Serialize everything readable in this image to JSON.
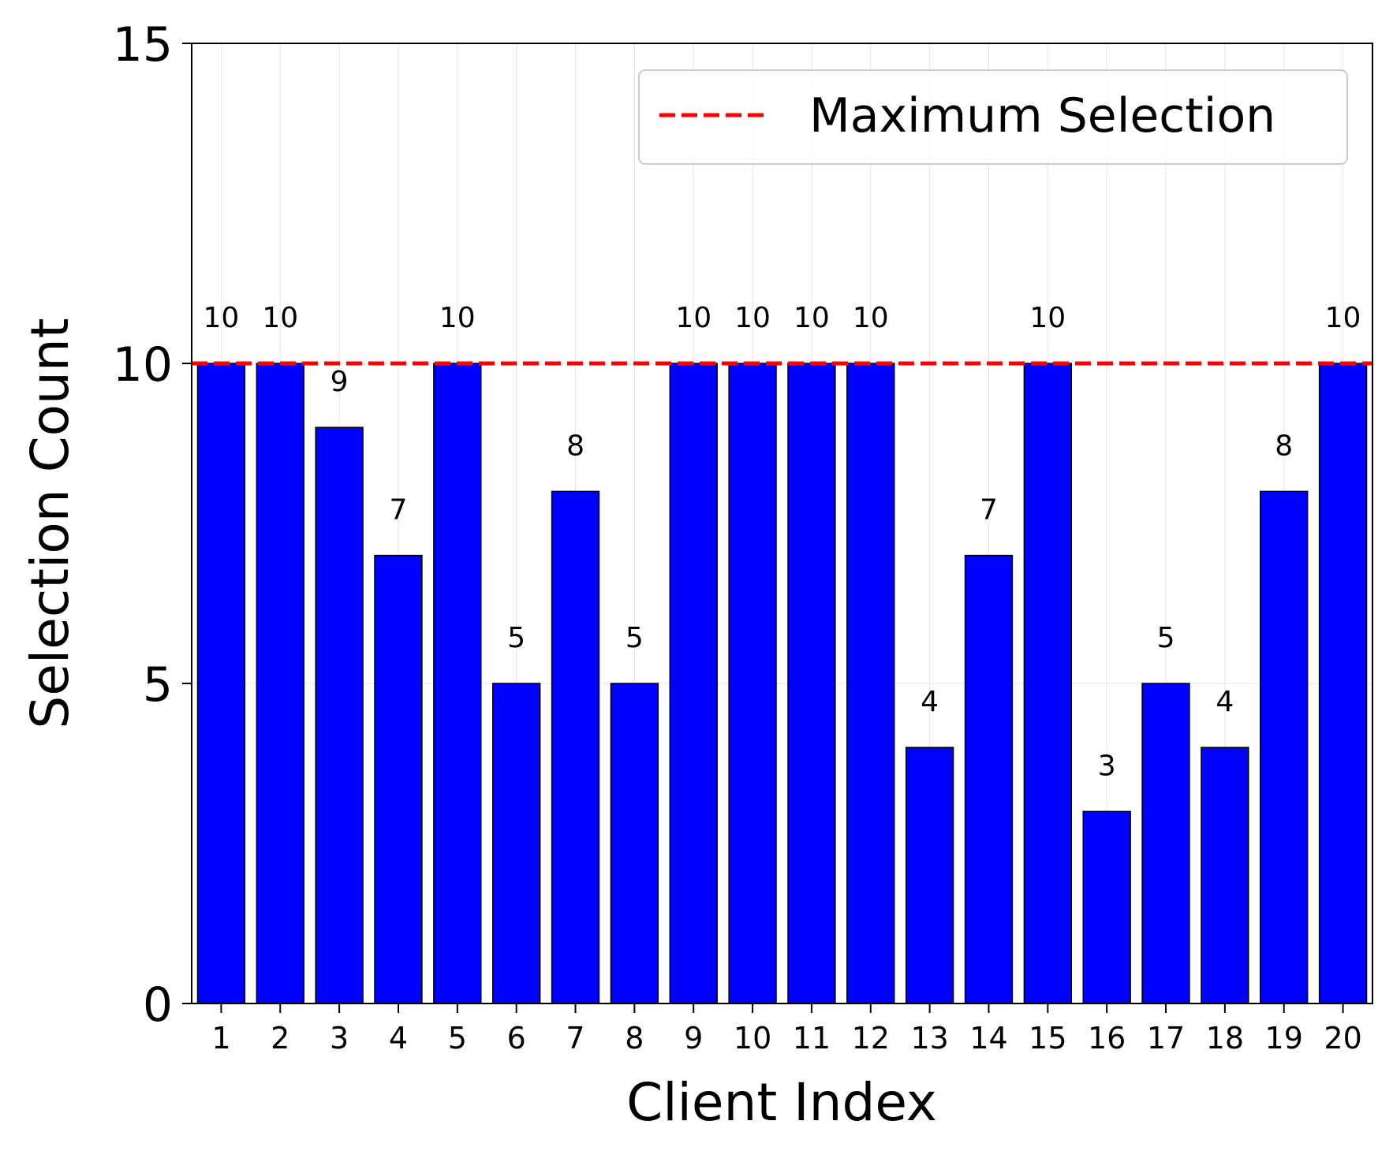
{
  "chart_data": {
    "type": "bar",
    "title": "",
    "xlabel": "Client Index",
    "ylabel": "Selection Count",
    "categories": [
      "1",
      "2",
      "3",
      "4",
      "5",
      "6",
      "7",
      "8",
      "9",
      "10",
      "11",
      "12",
      "13",
      "14",
      "15",
      "16",
      "17",
      "18",
      "19",
      "20"
    ],
    "values": [
      10,
      10,
      9,
      7,
      10,
      5,
      8,
      5,
      10,
      10,
      10,
      10,
      4,
      7,
      10,
      3,
      5,
      4,
      8,
      10
    ],
    "ylim": [
      0,
      15
    ],
    "yticks": [
      0,
      5,
      10,
      15
    ],
    "grid": true,
    "bar_color": "#0000ff",
    "bar_edge_color": "#000000",
    "reference_line": {
      "value": 10,
      "label": "Maximum Selection",
      "color": "#ff0000",
      "style": "dashed"
    },
    "legend": {
      "position": "top-right",
      "entries": [
        "Maximum Selection"
      ]
    }
  }
}
